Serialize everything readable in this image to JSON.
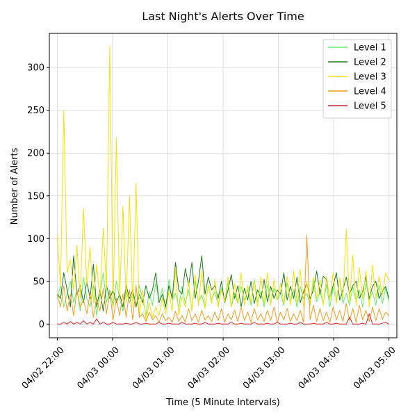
{
  "chart_data": {
    "type": "line",
    "title": "Last Night's Alerts Over Time",
    "xlabel": "Time (5 Minute Intervals)",
    "ylabel": "Number of Alerts",
    "xlim_minutes": [
      -10,
      430
    ],
    "ylim": [
      -16,
      340
    ],
    "x_ticks": [
      {
        "minute": 0,
        "label": "04/02 22:00"
      },
      {
        "minute": 70,
        "label": "04/03 00:00"
      },
      {
        "minute": 140,
        "label": "04/03 01:00"
      },
      {
        "minute": 210,
        "label": "04/03 02:00"
      },
      {
        "minute": 280,
        "label": "04/03 03:00"
      },
      {
        "minute": 350,
        "label": "04/03 04:00"
      },
      {
        "minute": 420,
        "label": "04/03 05:00"
      }
    ],
    "y_ticks": [
      0,
      50,
      100,
      150,
      200,
      250,
      300
    ],
    "grid": true,
    "legend_position": "top-right",
    "x_step_minutes": 5,
    "series": [
      {
        "name": "Level 1",
        "color": "#66ee66",
        "values": [
          30,
          45,
          20,
          35,
          50,
          25,
          40,
          15,
          55,
          30,
          20,
          45,
          10,
          35,
          60,
          25,
          40,
          20,
          50,
          30,
          15,
          40,
          25,
          35,
          20,
          45,
          30,
          10,
          38,
          22,
          48,
          26,
          42,
          18,
          52,
          28,
          36,
          20,
          44,
          24,
          40,
          18,
          50,
          26,
          34,
          20,
          46,
          28,
          38,
          22,
          42,
          26,
          48,
          20,
          36,
          24,
          44,
          28,
          40,
          22,
          52,
          26,
          38,
          20,
          46,
          24,
          42,
          28,
          36,
          22,
          48,
          26,
          40,
          20,
          44,
          30,
          36,
          22,
          50,
          26,
          38,
          24,
          46,
          20,
          42,
          28,
          52,
          24,
          36,
          22,
          44,
          26,
          40,
          20,
          48,
          28,
          38,
          22,
          46,
          24,
          42,
          26
        ]
      },
      {
        "name": "Level 2",
        "color": "#1e7a1e",
        "values": [
          35,
          30,
          60,
          40,
          20,
          80,
          35,
          45,
          25,
          50,
          30,
          70,
          20,
          40,
          15,
          45,
          30,
          40,
          25,
          35,
          20,
          45,
          30,
          40,
          20,
          35,
          25,
          45,
          30,
          40,
          60,
          25,
          35,
          20,
          45,
          30,
          72,
          40,
          35,
          65,
          45,
          72,
          30,
          50,
          80,
          35,
          55,
          40,
          45,
          30,
          50,
          25,
          40,
          58,
          30,
          45,
          20,
          42,
          28,
          50,
          24,
          40,
          30,
          52,
          26,
          44,
          30,
          40,
          35,
          60,
          28,
          44,
          30,
          55,
          25,
          38,
          48,
          30,
          40,
          62,
          35,
          56,
          52,
          30,
          45,
          60,
          28,
          40,
          55,
          35,
          45,
          50,
          30,
          38,
          55,
          30,
          44,
          50,
          30,
          38,
          44,
          30
        ]
      },
      {
        "name": "Level 3",
        "color": "#f5e10a",
        "values": [
          105,
          45,
          250,
          60,
          75,
          40,
          92,
          30,
          135,
          45,
          90,
          25,
          70,
          30,
          112,
          40,
          325,
          20,
          218,
          30,
          138,
          25,
          150,
          20,
          165,
          10,
          40,
          5,
          25,
          8,
          20,
          10,
          30,
          12,
          38,
          15,
          66,
          10,
          32,
          20,
          50,
          15,
          58,
          22,
          62,
          18,
          46,
          24,
          52,
          20,
          40,
          26,
          55,
          20,
          48,
          24,
          60,
          22,
          45,
          26,
          50,
          20,
          55,
          24,
          60,
          22,
          52,
          28,
          48,
          24,
          56,
          22,
          62,
          26,
          64,
          20,
          50,
          24,
          55,
          30,
          52,
          22,
          56,
          28,
          60,
          24,
          54,
          30,
          111,
          26,
          81,
          22,
          66,
          30,
          62,
          20,
          69,
          30,
          56,
          34,
          60,
          50
        ]
      },
      {
        "name": "Level 4",
        "color": "#f39c1f",
        "values": [
          35,
          20,
          45,
          15,
          35,
          10,
          40,
          20,
          28,
          12,
          36,
          8,
          30,
          15,
          42,
          12,
          38,
          5,
          30,
          10,
          35,
          8,
          40,
          5,
          45,
          8,
          12,
          3,
          14,
          5,
          10,
          2,
          12,
          4,
          8,
          2,
          15,
          3,
          10,
          2,
          18,
          4,
          12,
          2,
          16,
          5,
          10,
          3,
          14,
          4,
          18,
          2,
          12,
          5,
          16,
          3,
          20,
          4,
          14,
          2,
          18,
          5,
          12,
          3,
          16,
          4,
          20,
          2,
          14,
          5,
          18,
          3,
          12,
          4,
          16,
          2,
          104,
          5,
          22,
          3,
          18,
          4,
          14,
          2,
          20,
          5,
          16,
          3,
          24,
          4,
          18,
          2,
          22,
          5,
          16,
          3,
          20,
          4,
          18,
          6,
          14,
          10
        ]
      },
      {
        "name": "Level 5",
        "color": "#d62728",
        "values": [
          0,
          0,
          2,
          0,
          3,
          0,
          2,
          0,
          4,
          0,
          2,
          0,
          6,
          0,
          2,
          0,
          0,
          2,
          0,
          0,
          0,
          1,
          0,
          0,
          2,
          0,
          0,
          1,
          0,
          0,
          0,
          2,
          0,
          0,
          1,
          0,
          0,
          0,
          2,
          0,
          0,
          0,
          1,
          0,
          0,
          2,
          0,
          0,
          0,
          1,
          0,
          0,
          0,
          2,
          0,
          0,
          1,
          0,
          0,
          0,
          2,
          0,
          0,
          0,
          1,
          0,
          0,
          2,
          0,
          0,
          0,
          1,
          0,
          0,
          2,
          0,
          0,
          0,
          1,
          0,
          0,
          0,
          2,
          0,
          0,
          1,
          0,
          0,
          0,
          8,
          0,
          0,
          0,
          1,
          0,
          12,
          0,
          0,
          0,
          1,
          2,
          0
        ]
      }
    ]
  }
}
